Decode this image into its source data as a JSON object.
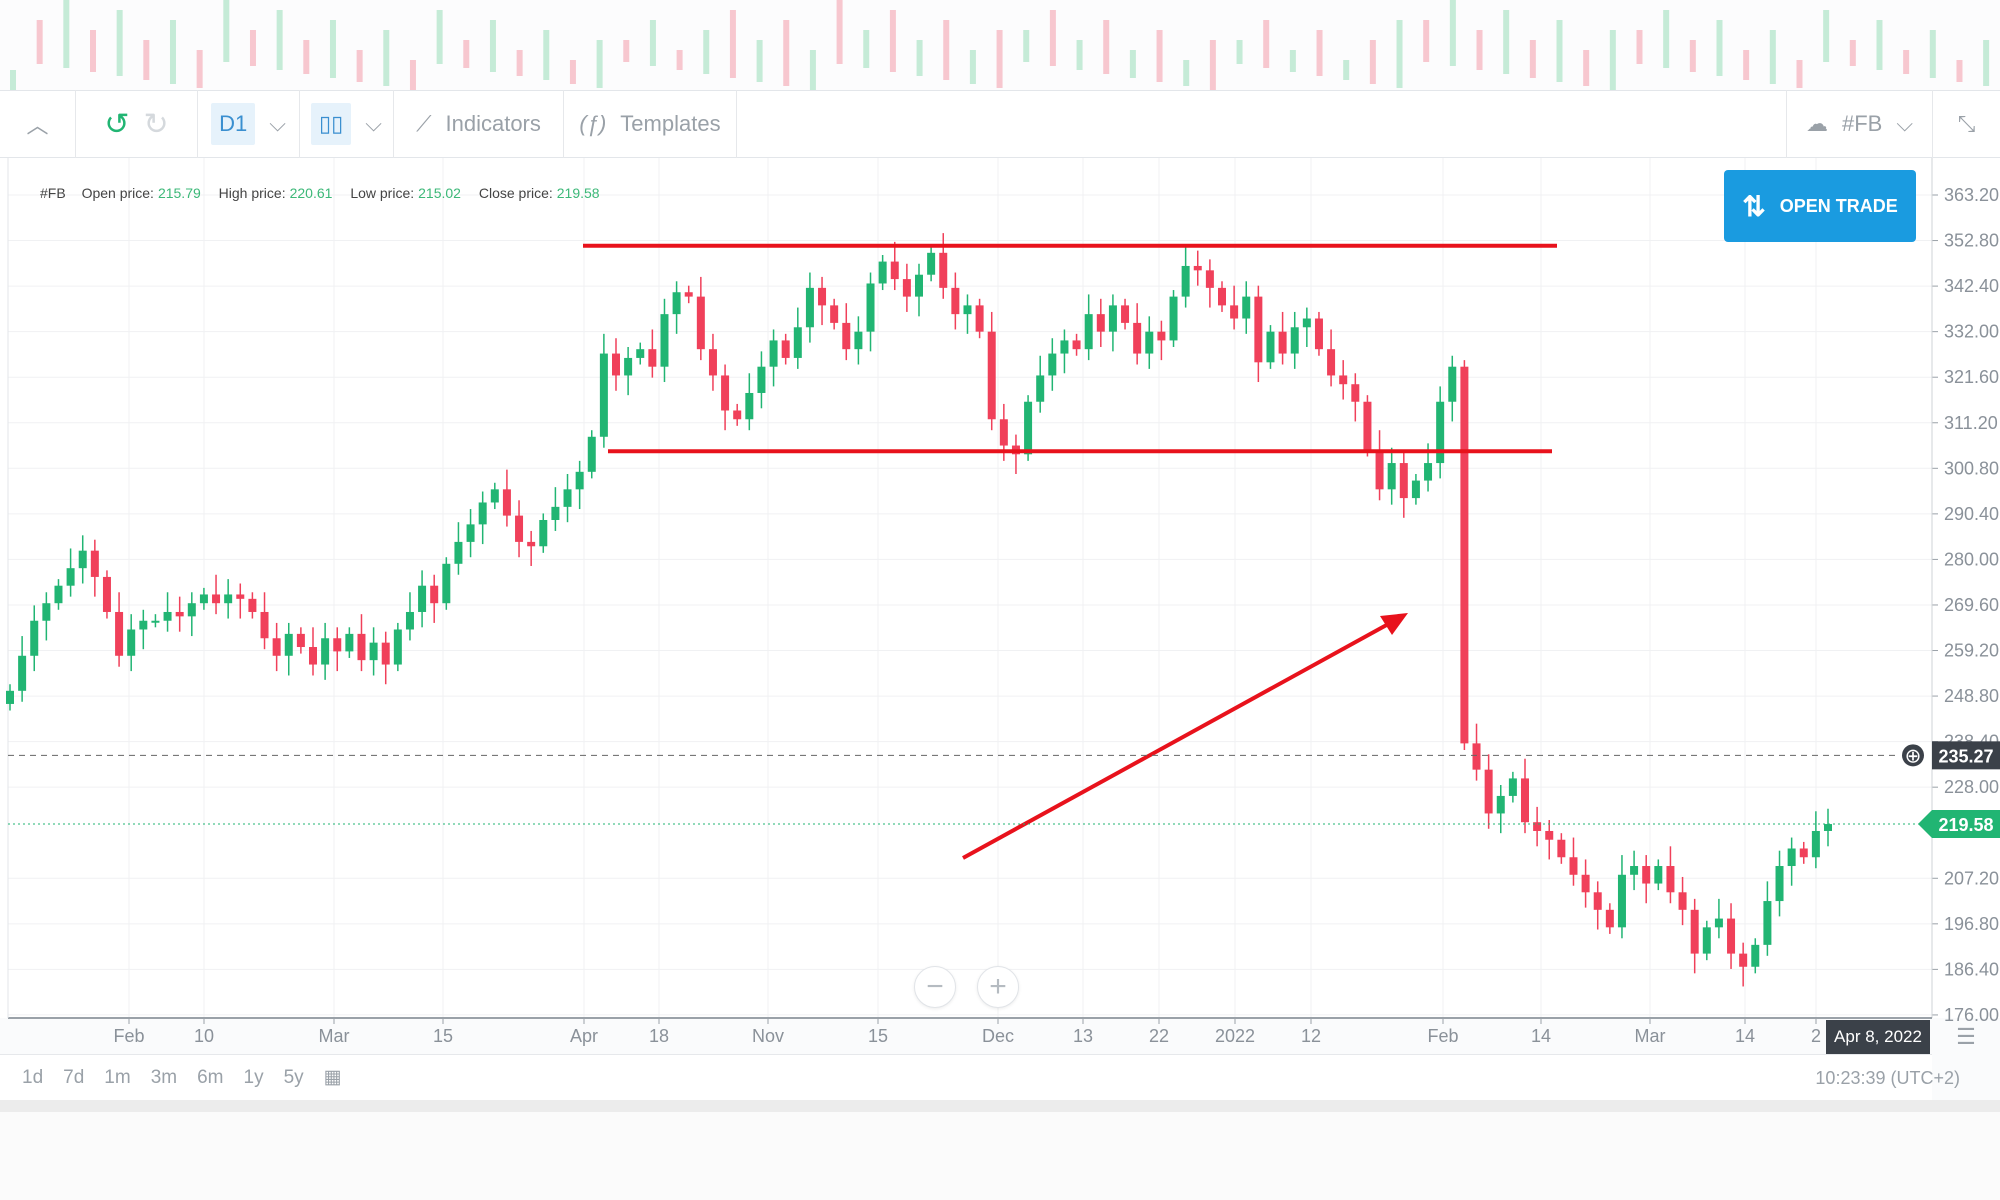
{
  "toolbar": {
    "timeframe": "D1",
    "indicators_label": "Indicators",
    "templates_label": "Templates",
    "symbol": "#FB"
  },
  "legend": {
    "symbol": "#FB",
    "open_label": "Open price:",
    "open": "215.79",
    "high_label": "High price:",
    "high": "220.61",
    "low_label": "Low price:",
    "low": "215.02",
    "close_label": "Close price:",
    "close": "219.58"
  },
  "open_trade_label": "OPEN TRADE",
  "price_axis": [
    "363.20",
    "352.80",
    "342.40",
    "332.00",
    "321.60",
    "311.20",
    "300.80",
    "290.40",
    "280.00",
    "269.60",
    "259.20",
    "248.80",
    "238.40",
    "228.00",
    "207.20",
    "196.80",
    "186.40",
    "176.00"
  ],
  "crosshair_price": "235.27",
  "last_price": "219.58",
  "x_axis": [
    "Feb",
    "10",
    "Mar",
    "15",
    "Apr",
    "18",
    "Nov",
    "15",
    "Dec",
    "13",
    "22",
    "2022",
    "12",
    "Feb",
    "14",
    "Mar",
    "14",
    "2"
  ],
  "crosshair_date": "Apr 8, 2022",
  "ranges": [
    "1d",
    "7d",
    "1m",
    "3m",
    "6m",
    "1y",
    "5y"
  ],
  "clock": "10:23:39 (UTC+2)",
  "colors": {
    "up": "#21b573",
    "down": "#f0405a",
    "annotation": "#e8121c",
    "accent": "#1a9be0"
  },
  "annotations": {
    "resistance": 351.6,
    "support": 304.7
  },
  "closes": [
    250,
    258,
    266,
    270,
    274,
    278,
    282,
    276,
    268,
    258,
    264,
    266,
    266,
    268,
    267,
    270,
    272,
    270,
    272,
    271,
    268,
    262,
    258,
    263,
    260,
    256,
    262,
    259,
    263,
    257,
    261,
    256,
    264,
    268,
    274,
    270,
    279,
    284,
    288,
    293,
    296,
    290,
    284,
    283,
    289,
    292,
    296,
    300,
    308,
    327,
    322,
    326,
    328,
    324,
    336,
    341,
    340,
    328,
    322,
    314,
    312,
    318,
    324,
    330,
    326,
    333,
    342,
    338,
    334,
    328,
    332,
    343,
    348,
    344,
    340,
    345,
    350,
    342,
    336,
    338,
    332,
    312,
    306,
    304,
    316,
    322,
    327,
    330,
    328,
    336,
    332,
    338,
    334,
    327,
    332,
    330,
    340,
    347,
    346,
    342,
    338,
    335,
    340,
    325,
    332,
    327,
    333,
    335,
    328,
    322,
    320,
    316,
    305,
    296,
    302,
    294,
    298,
    302,
    316,
    324,
    238,
    232,
    222,
    226,
    230,
    220,
    218,
    216,
    212,
    208,
    204,
    200,
    196,
    208,
    210,
    206,
    210,
    204,
    200,
    190,
    196,
    198,
    190,
    187,
    192,
    202,
    210,
    214,
    212,
    218,
    219.58
  ]
}
